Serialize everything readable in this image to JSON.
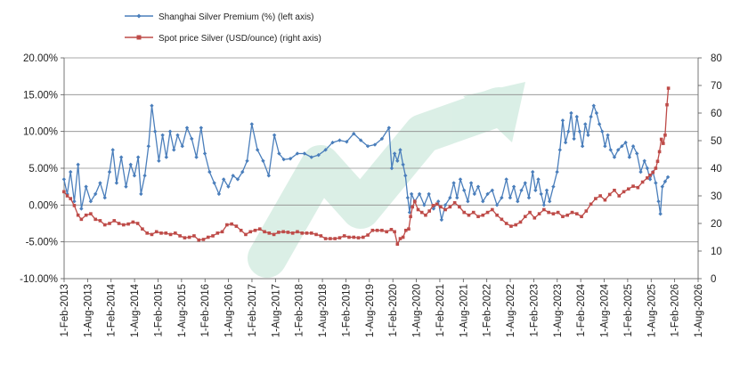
{
  "chart_data": {
    "type": "line",
    "title": "",
    "xlabel": "",
    "ylabel_left": "",
    "ylabel_right": "",
    "x_ticks": [
      "1-Feb-2013",
      "1-Aug-2013",
      "1-Feb-2014",
      "1-Aug-2014",
      "1-Feb-2015",
      "1-Aug-2015",
      "1-Feb-2016",
      "1-Aug-2016",
      "1-Feb-2017",
      "1-Aug-2017",
      "1-Feb-2018",
      "1-Aug-2018",
      "1-Feb-2019",
      "1-Aug-2019",
      "1-Feb-2020",
      "1-Aug-2020",
      "1-Feb-2021",
      "1-Aug-2021",
      "1-Feb-2022",
      "1-Aug-2022",
      "1-Feb-2023",
      "1-Aug-2023",
      "1-Feb-2024",
      "1-Aug-2024",
      "1-Feb-2025",
      "1-Aug-2025",
      "1-Feb-2026",
      "1-Aug-2026"
    ],
    "x_range": [
      2013.083,
      2026.583
    ],
    "y_left": {
      "min": -10,
      "max": 20,
      "step": 5,
      "tick_labels": [
        "-10.00%",
        "-5.00%",
        "0.00%",
        "5.00%",
        "10.00%",
        "15.00%",
        "20.00%"
      ]
    },
    "y_right": {
      "min": 0,
      "max": 80,
      "step": 10,
      "tick_labels": [
        "0",
        "10",
        "20",
        "30",
        "40",
        "50",
        "60",
        "70",
        "80"
      ]
    },
    "gridlines": "horizontal",
    "legend_position": "top-left",
    "series": [
      {
        "name": "Shanghai Silver Premium (%) (left axis)",
        "axis": "left",
        "color": "#4a7ebb",
        "marker": "diamond",
        "points": [
          [
            2013.08,
            3.5
          ],
          [
            2013.15,
            1.5
          ],
          [
            2013.22,
            4.5
          ],
          [
            2013.3,
            0.5
          ],
          [
            2013.38,
            5.5
          ],
          [
            2013.45,
            -0.5
          ],
          [
            2013.55,
            2.5
          ],
          [
            2013.65,
            0.5
          ],
          [
            2013.75,
            1.5
          ],
          [
            2013.85,
            3.0
          ],
          [
            2013.95,
            1.0
          ],
          [
            2014.05,
            4.5
          ],
          [
            2014.12,
            7.5
          ],
          [
            2014.2,
            3.0
          ],
          [
            2014.3,
            6.5
          ],
          [
            2014.4,
            2.5
          ],
          [
            2014.5,
            5.5
          ],
          [
            2014.58,
            4.0
          ],
          [
            2014.66,
            6.5
          ],
          [
            2014.72,
            1.5
          ],
          [
            2014.8,
            4.0
          ],
          [
            2014.88,
            8.0
          ],
          [
            2014.95,
            13.5
          ],
          [
            2015.02,
            10.0
          ],
          [
            2015.1,
            6.0
          ],
          [
            2015.18,
            9.5
          ],
          [
            2015.26,
            6.5
          ],
          [
            2015.34,
            10.0
          ],
          [
            2015.42,
            7.5
          ],
          [
            2015.5,
            9.5
          ],
          [
            2015.6,
            8.0
          ],
          [
            2015.7,
            10.5
          ],
          [
            2015.8,
            9.0
          ],
          [
            2015.9,
            6.5
          ],
          [
            2016.0,
            10.5
          ],
          [
            2016.08,
            7.0
          ],
          [
            2016.18,
            4.5
          ],
          [
            2016.28,
            3.0
          ],
          [
            2016.38,
            1.5
          ],
          [
            2016.48,
            3.5
          ],
          [
            2016.58,
            2.5
          ],
          [
            2016.68,
            4.0
          ],
          [
            2016.78,
            3.5
          ],
          [
            2016.88,
            4.5
          ],
          [
            2016.98,
            6.0
          ],
          [
            2017.08,
            11.0
          ],
          [
            2017.2,
            7.5
          ],
          [
            2017.32,
            6.0
          ],
          [
            2017.44,
            4.0
          ],
          [
            2017.56,
            9.5
          ],
          [
            2017.66,
            7.0
          ],
          [
            2017.76,
            6.2
          ],
          [
            2017.9,
            6.3
          ],
          [
            2018.05,
            7.0
          ],
          [
            2018.2,
            7.0
          ],
          [
            2018.35,
            6.5
          ],
          [
            2018.5,
            6.8
          ],
          [
            2018.65,
            7.5
          ],
          [
            2018.8,
            8.5
          ],
          [
            2018.95,
            8.8
          ],
          [
            2019.1,
            8.6
          ],
          [
            2019.25,
            9.7
          ],
          [
            2019.4,
            8.8
          ],
          [
            2019.55,
            8.0
          ],
          [
            2019.7,
            8.2
          ],
          [
            2019.85,
            9.0
          ],
          [
            2020.0,
            10.5
          ],
          [
            2020.06,
            5.0
          ],
          [
            2020.12,
            7.0
          ],
          [
            2020.18,
            6.0
          ],
          [
            2020.24,
            7.5
          ],
          [
            2020.3,
            5.5
          ],
          [
            2020.35,
            4.0
          ],
          [
            2020.4,
            1.0
          ],
          [
            2020.44,
            -1.0
          ],
          [
            2020.48,
            1.5
          ],
          [
            2020.55,
            0.5
          ],
          [
            2020.65,
            1.5
          ],
          [
            2020.75,
            0.0
          ],
          [
            2020.85,
            1.5
          ],
          [
            2020.95,
            -0.5
          ],
          [
            2021.05,
            0.5
          ],
          [
            2021.12,
            -2.0
          ],
          [
            2021.2,
            0.0
          ],
          [
            2021.3,
            1.0
          ],
          [
            2021.38,
            3.0
          ],
          [
            2021.45,
            1.0
          ],
          [
            2021.52,
            3.5
          ],
          [
            2021.6,
            2.0
          ],
          [
            2021.68,
            0.5
          ],
          [
            2021.75,
            3.0
          ],
          [
            2021.82,
            1.5
          ],
          [
            2021.9,
            2.5
          ],
          [
            2022.0,
            0.5
          ],
          [
            2022.1,
            1.5
          ],
          [
            2022.2,
            2.0
          ],
          [
            2022.3,
            0.0
          ],
          [
            2022.4,
            1.0
          ],
          [
            2022.5,
            3.5
          ],
          [
            2022.58,
            1.0
          ],
          [
            2022.66,
            2.5
          ],
          [
            2022.74,
            0.5
          ],
          [
            2022.82,
            2.0
          ],
          [
            2022.9,
            3.0
          ],
          [
            2022.98,
            1.0
          ],
          [
            2023.06,
            4.5
          ],
          [
            2023.12,
            2.0
          ],
          [
            2023.18,
            3.5
          ],
          [
            2023.24,
            1.5
          ],
          [
            2023.3,
            0.0
          ],
          [
            2023.36,
            2.0
          ],
          [
            2023.42,
            0.5
          ],
          [
            2023.5,
            2.5
          ],
          [
            2023.58,
            4.5
          ],
          [
            2023.64,
            7.5
          ],
          [
            2023.7,
            11.5
          ],
          [
            2023.76,
            8.5
          ],
          [
            2023.82,
            10.0
          ],
          [
            2023.88,
            12.5
          ],
          [
            2023.94,
            9.0
          ],
          [
            2024.0,
            12.0
          ],
          [
            2024.06,
            10.0
          ],
          [
            2024.12,
            8.0
          ],
          [
            2024.18,
            11.0
          ],
          [
            2024.24,
            9.5
          ],
          [
            2024.3,
            12.0
          ],
          [
            2024.36,
            13.5
          ],
          [
            2024.42,
            12.5
          ],
          [
            2024.48,
            11.0
          ],
          [
            2024.54,
            10.0
          ],
          [
            2024.6,
            8.0
          ],
          [
            2024.66,
            9.5
          ],
          [
            2024.72,
            7.5
          ],
          [
            2024.8,
            6.5
          ],
          [
            2024.88,
            7.5
          ],
          [
            2024.96,
            8.0
          ],
          [
            2025.04,
            8.5
          ],
          [
            2025.12,
            6.5
          ],
          [
            2025.2,
            8.0
          ],
          [
            2025.28,
            7.0
          ],
          [
            2025.36,
            4.5
          ],
          [
            2025.44,
            6.0
          ],
          [
            2025.5,
            5.0
          ],
          [
            2025.56,
            3.5
          ],
          [
            2025.62,
            4.5
          ],
          [
            2025.68,
            3.0
          ],
          [
            2025.74,
            0.5
          ],
          [
            2025.78,
            -1.2
          ],
          [
            2025.82,
            2.5
          ],
          [
            2025.88,
            3.2
          ],
          [
            2025.94,
            3.8
          ]
        ]
      },
      {
        "name": "Spot price Silver (USD/ounce) (right axis)",
        "axis": "right",
        "color": "#be4b48",
        "marker": "square",
        "points": [
          [
            2013.08,
            31.5
          ],
          [
            2013.15,
            30.0
          ],
          [
            2013.22,
            29.0
          ],
          [
            2013.3,
            26.5
          ],
          [
            2013.38,
            23.0
          ],
          [
            2013.45,
            21.5
          ],
          [
            2013.55,
            23.0
          ],
          [
            2013.65,
            23.5
          ],
          [
            2013.75,
            21.5
          ],
          [
            2013.85,
            21.0
          ],
          [
            2013.95,
            19.5
          ],
          [
            2014.05,
            20.0
          ],
          [
            2014.15,
            21.0
          ],
          [
            2014.25,
            20.0
          ],
          [
            2014.35,
            19.5
          ],
          [
            2014.45,
            19.8
          ],
          [
            2014.55,
            20.5
          ],
          [
            2014.65,
            20.0
          ],
          [
            2014.75,
            18.0
          ],
          [
            2014.85,
            16.5
          ],
          [
            2014.95,
            16.0
          ],
          [
            2015.05,
            17.0
          ],
          [
            2015.15,
            16.5
          ],
          [
            2015.25,
            16.5
          ],
          [
            2015.35,
            16.0
          ],
          [
            2015.45,
            16.5
          ],
          [
            2015.55,
            15.5
          ],
          [
            2015.65,
            14.8
          ],
          [
            2015.75,
            15.0
          ],
          [
            2015.85,
            15.5
          ],
          [
            2015.95,
            14.0
          ],
          [
            2016.05,
            14.2
          ],
          [
            2016.15,
            15.0
          ],
          [
            2016.25,
            15.5
          ],
          [
            2016.35,
            16.5
          ],
          [
            2016.45,
            17.0
          ],
          [
            2016.55,
            19.5
          ],
          [
            2016.65,
            19.8
          ],
          [
            2016.75,
            19.0
          ],
          [
            2016.85,
            17.5
          ],
          [
            2016.95,
            16.0
          ],
          [
            2017.05,
            17.0
          ],
          [
            2017.15,
            17.5
          ],
          [
            2017.25,
            18.0
          ],
          [
            2017.35,
            17.0
          ],
          [
            2017.45,
            16.5
          ],
          [
            2017.55,
            16.0
          ],
          [
            2017.65,
            16.8
          ],
          [
            2017.75,
            17.0
          ],
          [
            2017.85,
            16.8
          ],
          [
            2017.95,
            16.5
          ],
          [
            2018.05,
            17.0
          ],
          [
            2018.15,
            16.5
          ],
          [
            2018.25,
            16.5
          ],
          [
            2018.35,
            16.5
          ],
          [
            2018.45,
            16.0
          ],
          [
            2018.55,
            15.5
          ],
          [
            2018.65,
            14.5
          ],
          [
            2018.75,
            14.5
          ],
          [
            2018.85,
            14.5
          ],
          [
            2018.95,
            14.8
          ],
          [
            2019.05,
            15.5
          ],
          [
            2019.15,
            15.0
          ],
          [
            2019.25,
            15.0
          ],
          [
            2019.35,
            14.8
          ],
          [
            2019.45,
            15.0
          ],
          [
            2019.55,
            15.8
          ],
          [
            2019.65,
            17.5
          ],
          [
            2019.75,
            17.5
          ],
          [
            2019.85,
            17.5
          ],
          [
            2019.95,
            17.0
          ],
          [
            2020.05,
            17.8
          ],
          [
            2020.12,
            17.0
          ],
          [
            2020.18,
            12.5
          ],
          [
            2020.24,
            14.5
          ],
          [
            2020.3,
            15.0
          ],
          [
            2020.36,
            17.5
          ],
          [
            2020.42,
            18.0
          ],
          [
            2020.46,
            22.5
          ],
          [
            2020.5,
            26.0
          ],
          [
            2020.55,
            28.0
          ],
          [
            2020.62,
            25.0
          ],
          [
            2020.7,
            24.0
          ],
          [
            2020.78,
            23.0
          ],
          [
            2020.86,
            24.5
          ],
          [
            2020.94,
            26.5
          ],
          [
            2021.02,
            27.0
          ],
          [
            2021.1,
            26.0
          ],
          [
            2021.2,
            25.0
          ],
          [
            2021.3,
            26.0
          ],
          [
            2021.4,
            27.5
          ],
          [
            2021.5,
            26.0
          ],
          [
            2021.6,
            24.0
          ],
          [
            2021.7,
            23.0
          ],
          [
            2021.8,
            24.0
          ],
          [
            2021.9,
            22.5
          ],
          [
            2022.0,
            23.0
          ],
          [
            2022.1,
            24.0
          ],
          [
            2022.2,
            25.0
          ],
          [
            2022.3,
            23.0
          ],
          [
            2022.4,
            21.5
          ],
          [
            2022.5,
            20.0
          ],
          [
            2022.6,
            19.0
          ],
          [
            2022.7,
            19.5
          ],
          [
            2022.8,
            20.5
          ],
          [
            2022.9,
            22.5
          ],
          [
            2023.0,
            24.0
          ],
          [
            2023.1,
            22.0
          ],
          [
            2023.2,
            23.5
          ],
          [
            2023.3,
            25.0
          ],
          [
            2023.4,
            24.0
          ],
          [
            2023.5,
            23.5
          ],
          [
            2023.6,
            24.0
          ],
          [
            2023.7,
            22.5
          ],
          [
            2023.8,
            23.0
          ],
          [
            2023.9,
            24.0
          ],
          [
            2024.0,
            23.5
          ],
          [
            2024.1,
            22.5
          ],
          [
            2024.2,
            24.5
          ],
          [
            2024.3,
            27.0
          ],
          [
            2024.4,
            29.0
          ],
          [
            2024.5,
            30.0
          ],
          [
            2024.6,
            28.5
          ],
          [
            2024.7,
            30.5
          ],
          [
            2024.8,
            32.0
          ],
          [
            2024.9,
            30.0
          ],
          [
            2025.0,
            31.5
          ],
          [
            2025.1,
            32.5
          ],
          [
            2025.2,
            33.5
          ],
          [
            2025.3,
            33.0
          ],
          [
            2025.4,
            35.0
          ],
          [
            2025.5,
            36.5
          ],
          [
            2025.56,
            37.5
          ],
          [
            2025.62,
            38.5
          ],
          [
            2025.68,
            40.0
          ],
          [
            2025.72,
            42.5
          ],
          [
            2025.76,
            46.0
          ],
          [
            2025.8,
            50.5
          ],
          [
            2025.84,
            49.0
          ],
          [
            2025.88,
            52.0
          ],
          [
            2025.92,
            63.0
          ],
          [
            2025.95,
            69.0
          ]
        ]
      }
    ]
  }
}
